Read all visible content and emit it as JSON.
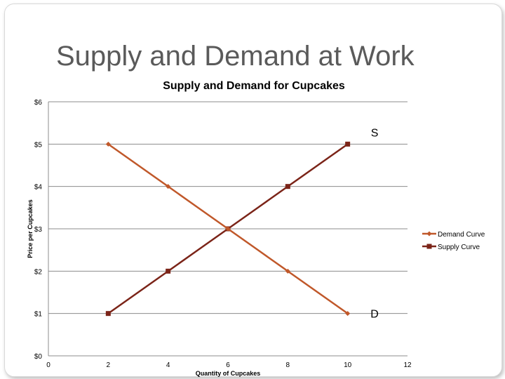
{
  "slide": {
    "title": "Supply and Demand at Work"
  },
  "chart_data": {
    "type": "line",
    "title": "Supply and Demand for Cupcakes",
    "xlabel": "Quantity of Cupcakes",
    "ylabel": "Price per Cupcakes",
    "xlim": [
      0,
      12
    ],
    "ylim": [
      0,
      6
    ],
    "x_ticks": [
      0,
      2,
      4,
      6,
      8,
      10,
      12
    ],
    "y_ticks": [
      0,
      1,
      2,
      3,
      4,
      5,
      6
    ],
    "y_tick_labels": [
      "$0",
      "$1",
      "$2",
      "$3",
      "$4",
      "$5",
      "$6"
    ],
    "grid": "horizontal",
    "legend": "right",
    "series": [
      {
        "name": "Demand Curve",
        "color": "#c0582a",
        "marker": "diamond",
        "points": [
          [
            2,
            5
          ],
          [
            4,
            4
          ],
          [
            6,
            3
          ],
          [
            8,
            2
          ],
          [
            10,
            1
          ]
        ]
      },
      {
        "name": "Supply Curve",
        "color": "#7b2418",
        "marker": "square",
        "points": [
          [
            2,
            1
          ],
          [
            4,
            2
          ],
          [
            6,
            3
          ],
          [
            8,
            4
          ],
          [
            10,
            5
          ]
        ]
      }
    ],
    "annotations": [
      {
        "text": "S",
        "x": 10.9,
        "y": 5.28
      },
      {
        "text": "D",
        "x": 10.9,
        "y": 1.0
      }
    ]
  }
}
